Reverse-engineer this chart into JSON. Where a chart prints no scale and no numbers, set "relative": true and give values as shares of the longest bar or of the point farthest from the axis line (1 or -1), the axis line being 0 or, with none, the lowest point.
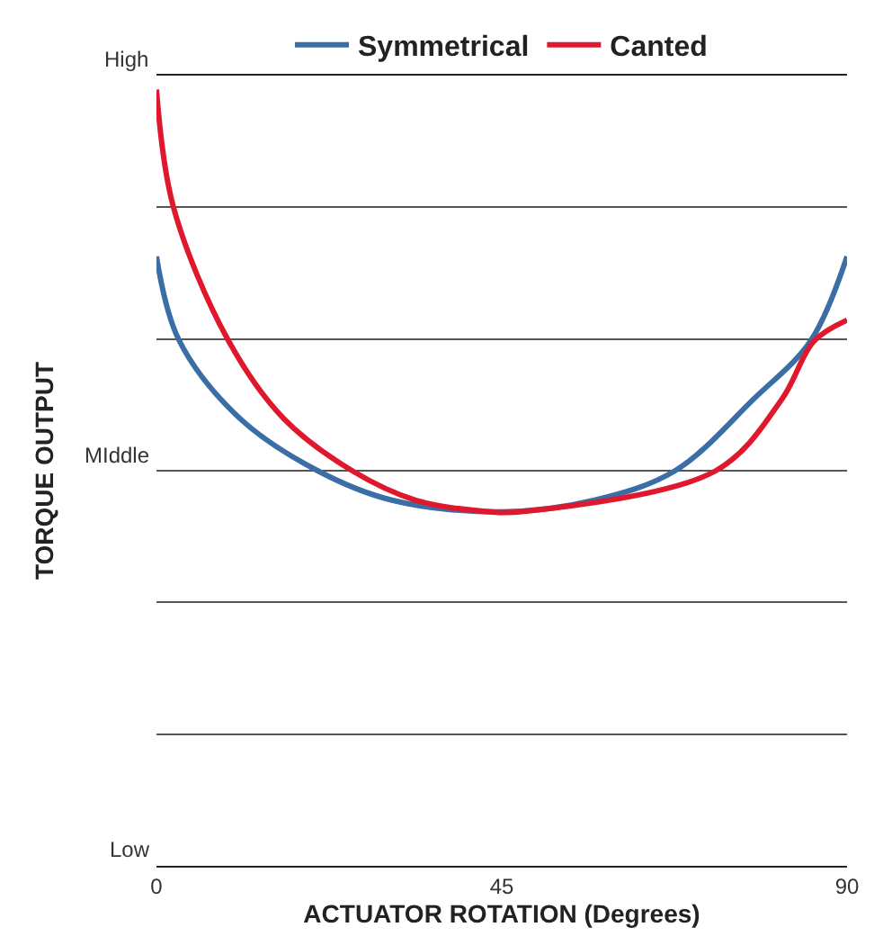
{
  "chart_data": {
    "type": "line",
    "xlabel": "ACTUATOR ROTATION (Degrees)",
    "ylabel": "TORQUE OUTPUT",
    "relative": true,
    "annotations": [
      "High",
      "MIddle",
      "Low"
    ],
    "series": [
      {
        "name": "Symmetrical",
        "color": "#3a6ea5",
        "x": [
          0,
          2.9,
          10.8,
          21,
          30.7,
          45,
          57.1,
          67.6,
          77.8,
          85.3,
          90
        ],
        "values": [
          0.785,
          0.678,
          0.577,
          0.509,
          0.471,
          0.456,
          0.471,
          0.509,
          0.601,
          0.677,
          0.785
        ]
      },
      {
        "name": "Canted",
        "color": "#e0182d",
        "x": [
          0,
          2.2,
          9.3,
          16.5,
          25.5,
          33.8,
          43.5,
          47.3,
          72.9,
          81.5,
          85.7,
          90
        ],
        "values": [
          1,
          0.849,
          0.678,
          0.577,
          0.509,
          0.471,
          0.456,
          0.456,
          0.509,
          0.601,
          0.676,
          0.703
        ]
      }
    ],
    "xlim": [
      0,
      90
    ],
    "xticks": [
      0,
      45,
      90
    ],
    "grid": "y",
    "legend": "top",
    "line_style": "solid"
  }
}
